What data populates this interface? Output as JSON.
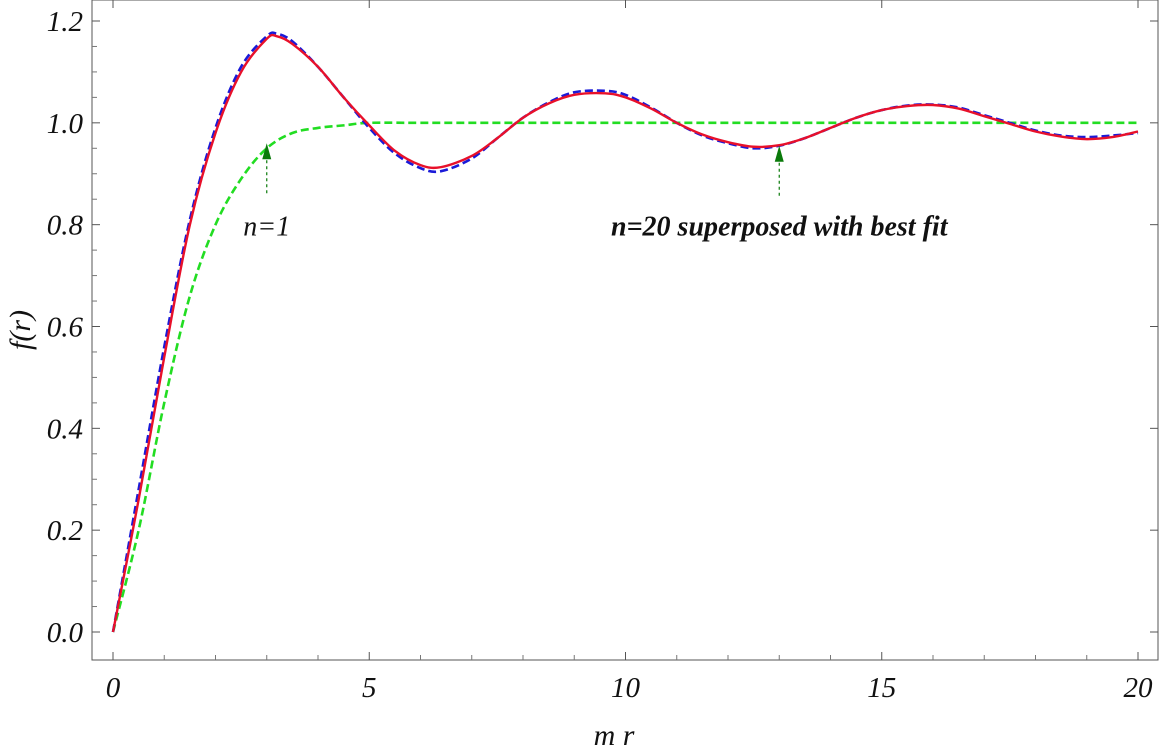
{
  "chart_data": {
    "type": "line",
    "xlabel": "m r",
    "ylabel": "f(r)",
    "xlim": [
      0,
      20
    ],
    "ylim": [
      0,
      1.2
    ],
    "x_ticks": [
      0,
      5,
      10,
      15,
      20
    ],
    "x_tick_labels": [
      "0",
      "5",
      "10",
      "15",
      "20"
    ],
    "y_ticks": [
      0.0,
      0.2,
      0.4,
      0.6,
      0.8,
      1.0,
      1.2
    ],
    "y_tick_labels": [
      "0.0",
      "0.2",
      "0.4",
      "0.6",
      "0.8",
      "1.0",
      "1.2"
    ],
    "grid": false,
    "series": [
      {
        "color": "#22dd22",
        "style": "dashed",
        "x": [
          0,
          0.5,
          1,
          1.5,
          2,
          2.5,
          3,
          3.5,
          4,
          4.5,
          5,
          6,
          8,
          10,
          12,
          14,
          16,
          18,
          20
        ],
        "y": [
          0,
          0.2,
          0.45,
          0.66,
          0.8,
          0.89,
          0.95,
          0.98,
          0.99,
          0.995,
          1.0,
          1.0,
          1.0,
          1.0,
          1.0,
          1.0,
          1.0,
          1.0,
          1.0
        ]
      },
      {
        "color": "#1a1ad8",
        "style": "dashed",
        "x": [
          0,
          0.5,
          1,
          1.5,
          2,
          2.5,
          3,
          3.2,
          3.5,
          4,
          4.5,
          5,
          5.5,
          6,
          6.4,
          7,
          7.5,
          8,
          8.5,
          9,
          9.6,
          10,
          10.5,
          11,
          11.5,
          12,
          12.5,
          13,
          13.5,
          14,
          14.5,
          15,
          15.5,
          16,
          16.5,
          17,
          17.5,
          18,
          18.5,
          19,
          19.5,
          20
        ],
        "y": [
          0,
          0.28,
          0.56,
          0.81,
          0.99,
          1.11,
          1.17,
          1.175,
          1.16,
          1.11,
          1.05,
          0.99,
          0.94,
          0.911,
          0.905,
          0.93,
          0.97,
          1.01,
          1.04,
          1.06,
          1.063,
          1.055,
          1.03,
          1.0,
          0.975,
          0.96,
          0.95,
          0.955,
          0.97,
          0.99,
          1.01,
          1.025,
          1.034,
          1.036,
          1.03,
          1.015,
          1.0,
          0.985,
          0.975,
          0.972,
          0.975,
          0.98
        ]
      },
      {
        "color": "#e8102a",
        "style": "solid",
        "x": [
          0,
          0.5,
          1,
          1.5,
          2,
          2.5,
          3,
          3.2,
          3.5,
          4,
          4.5,
          5,
          5.5,
          6,
          6.4,
          7,
          7.5,
          8,
          8.5,
          9,
          9.6,
          10,
          10.5,
          11,
          11.5,
          12,
          12.5,
          13,
          13.5,
          14,
          14.5,
          15,
          15.5,
          16,
          16.5,
          17,
          17.5,
          18,
          18.5,
          19,
          19.5,
          20
        ],
        "y": [
          0,
          0.26,
          0.54,
          0.8,
          0.98,
          1.1,
          1.165,
          1.17,
          1.155,
          1.11,
          1.05,
          0.995,
          0.945,
          0.917,
          0.913,
          0.935,
          0.97,
          1.01,
          1.038,
          1.055,
          1.058,
          1.05,
          1.028,
          1.0,
          0.977,
          0.962,
          0.953,
          0.956,
          0.97,
          0.99,
          1.01,
          1.025,
          1.033,
          1.035,
          1.028,
          1.013,
          0.998,
          0.983,
          0.973,
          0.968,
          0.972,
          0.983
        ]
      }
    ],
    "annotations": [
      {
        "text": "n=1",
        "bold": false,
        "arrow_x": 3.0,
        "arrow_y": 0.96,
        "text_x": 3.0,
        "text_y": 0.8
      },
      {
        "text": "n=20 superposed with best fit",
        "bold": true,
        "arrow_x": 13.0,
        "arrow_y": 0.955,
        "text_x": 13.0,
        "text_y": 0.8
      }
    ],
    "annotation_color": "#0a7a0a"
  }
}
